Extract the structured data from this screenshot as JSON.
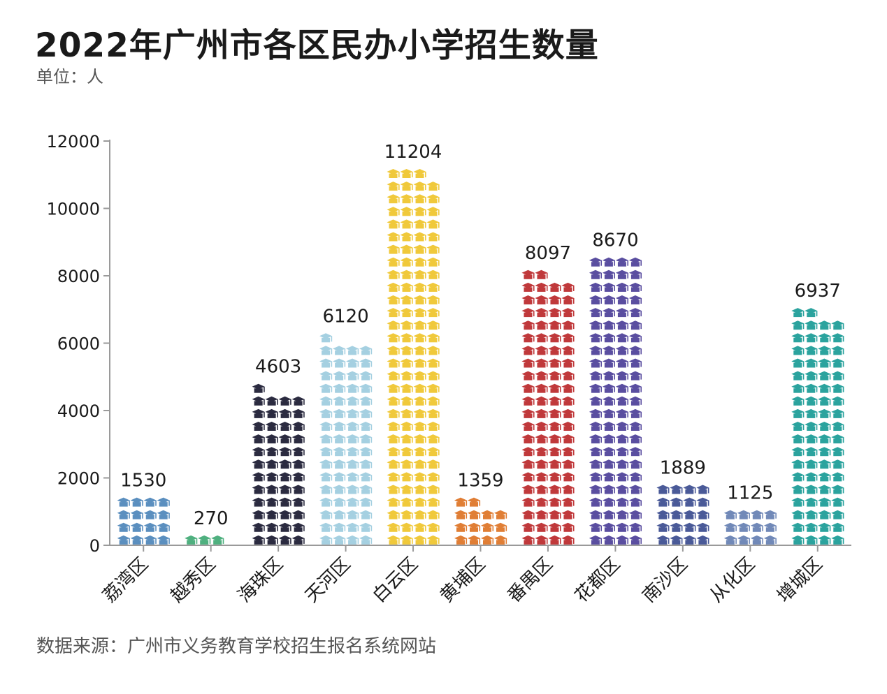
{
  "title": "2022年广州市各区民办小学招生数量",
  "unit": "单位：人",
  "source": "数据来源：广州市义务教育学校招生报名系统网站",
  "chart_data": {
    "type": "bar",
    "style": "pictogram",
    "icon": "graduation-cap-icon",
    "title": "2022年广州市各区民办小学招生数量",
    "xlabel": "",
    "ylabel": "单位：人",
    "ylim": [
      0,
      12000
    ],
    "yticks": [
      0,
      2000,
      4000,
      6000,
      8000,
      10000,
      12000
    ],
    "grid": false,
    "categories": [
      "荔湾区",
      "越秀区",
      "海珠区",
      "天河区",
      "白云区",
      "黄埔区",
      "番禺区",
      "花都区",
      "南沙区",
      "从化区",
      "增城区"
    ],
    "values": [
      1530,
      270,
      4603,
      6120,
      11204,
      1359,
      8097,
      8670,
      1889,
      1125,
      6937
    ],
    "colors": [
      "#5b8fbf",
      "#4fb07f",
      "#2b2b40",
      "#a5d0e1",
      "#f0c93b",
      "#e07e35",
      "#c0393b",
      "#5a4ea0",
      "#4a5a98",
      "#7189b8",
      "#2ba39e"
    ]
  }
}
